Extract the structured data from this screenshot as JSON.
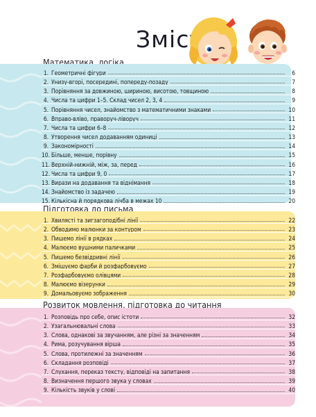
{
  "title": "Зміст",
  "sections": [
    {
      "heading": "Математика, логіка",
      "items": [
        {
          "num": "1.",
          "text": "Геометричні фігури",
          "page": "6"
        },
        {
          "num": "2.",
          "text": "Унизу-вгорі, посередині, попереду-позаду",
          "page": "7"
        },
        {
          "num": "3.",
          "text": "Порівняння за довжиною, шириною, висотою, товщиною",
          "page": "8"
        },
        {
          "num": "4.",
          "text": "Числа та цифри 1–5. Склад чисел 2, 3, 4",
          "page": "9"
        },
        {
          "num": "5.",
          "text": "Порівняння чисел, знайомство з математичними знаками",
          "page": "10"
        },
        {
          "num": "6.",
          "text": "Вправо-вліво, праворуч-ліворуч",
          "page": "11"
        },
        {
          "num": "7.",
          "text": "Числа та цифри 6–8",
          "page": "12"
        },
        {
          "num": "8.",
          "text": "Утворення чисел додаванням одиниці",
          "page": "13"
        },
        {
          "num": "9.",
          "text": "Закономірності",
          "page": "14"
        },
        {
          "num": "10.",
          "text": "Більше, менше, порівну",
          "page": "15"
        },
        {
          "num": "11.",
          "text": "Верхній-нижній, між, за, перед",
          "page": "16"
        },
        {
          "num": "12.",
          "text": "Числа та цифри 9, 0",
          "page": "17"
        },
        {
          "num": "13.",
          "text": "Вирази на додавання та віднімання",
          "page": "18"
        },
        {
          "num": "14.",
          "text": "Знайомство із задачею",
          "page": "19"
        },
        {
          "num": "15.",
          "text": "Кількісна й порядкова лічба в межах 10",
          "page": "20"
        }
      ]
    },
    {
      "heading": "Підготовка до письма",
      "items": [
        {
          "num": "1.",
          "text": "Хвилясті та зигзагоподібні лінії",
          "page": "22"
        },
        {
          "num": "2.",
          "text": "Обводимо малюнки за контуром",
          "page": "23"
        },
        {
          "num": "3.",
          "text": "Пишемо лінії в рядках",
          "page": "24"
        },
        {
          "num": "4.",
          "text": "Малюємо вушними паличками",
          "page": "25"
        },
        {
          "num": "5.",
          "text": "Пишемо безвідривні лінії",
          "page": "26"
        },
        {
          "num": "6.",
          "text": "Змішуємо фарби й розфарбовуємо",
          "page": "27"
        },
        {
          "num": "7.",
          "text": "Розфарбовуємо олівцями",
          "page": "28"
        },
        {
          "num": "8.",
          "text": "Малюємо візерунки",
          "page": "29"
        },
        {
          "num": "9.",
          "text": "Домальовуємо зображення",
          "page": "30"
        }
      ]
    },
    {
      "heading": "Розвиток мовлення, підготовка до читання",
      "items": [
        {
          "num": "1.",
          "text": "Розповідь про себе, опис істоти",
          "page": "32"
        },
        {
          "num": "2.",
          "text": "Узагальнювальні слова",
          "page": "33"
        },
        {
          "num": "3.",
          "text": "Слова, однакові за звучанням, але різні за значенням",
          "page": "34"
        },
        {
          "num": "4.",
          "text": "Рима, розучування вірша",
          "page": "35"
        },
        {
          "num": "5.",
          "text": "Слова, протилежні за значенням",
          "page": "36"
        },
        {
          "num": "6.",
          "text": "Складання розповіді",
          "page": "37"
        },
        {
          "num": "7.",
          "text": "Слухання, переказ тексту, відповіді на запитання",
          "page": "38"
        },
        {
          "num": "8.",
          "text": "Визначення першого звука у словах",
          "page": "39"
        },
        {
          "num": "9.",
          "text": "Кількість звуків у слові",
          "page": "40"
        }
      ]
    }
  ],
  "colors": {
    "math_band": "#c6e8ee",
    "writing_band": "#fde99a",
    "speech_band": "#f5cfe0"
  },
  "icons": [
    "kids-illustration"
  ]
}
